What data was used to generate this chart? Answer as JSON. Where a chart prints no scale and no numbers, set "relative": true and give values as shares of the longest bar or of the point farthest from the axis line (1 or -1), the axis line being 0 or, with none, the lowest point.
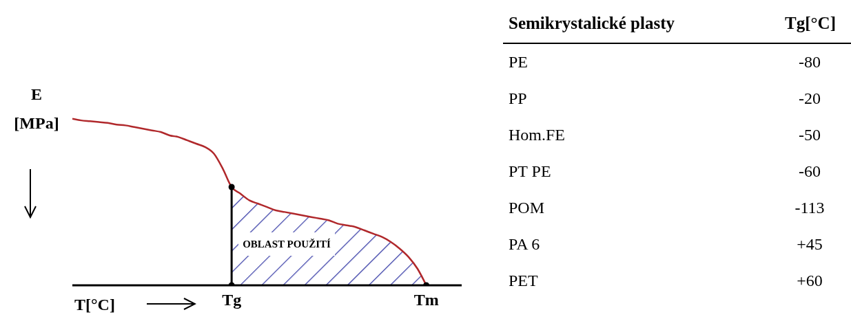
{
  "chart_data": [
    {
      "type": "line",
      "relative": true,
      "ylabel": "E [MPa]",
      "xlabel": "T[°C]",
      "legend": false,
      "grid": false,
      "line_style": "solid",
      "categories": [
        null,
        null,
        null,
        null,
        null,
        null,
        null,
        null,
        null,
        null,
        null,
        null,
        null,
        null,
        null,
        null,
        null,
        null,
        "Tg",
        null,
        null,
        null,
        null,
        null,
        null,
        null,
        null,
        null,
        null,
        null,
        null,
        null,
        null,
        null,
        null,
        null,
        null,
        null,
        null,
        null,
        "Tm"
      ],
      "series": [
        {
          "type": "line",
          "color": "#b0282b",
          "values": [
            1.0,
            0.99,
            0.985,
            0.98,
            0.975,
            0.965,
            0.96,
            0.95,
            0.94,
            0.93,
            0.92,
            0.9,
            0.89,
            0.87,
            0.85,
            0.83,
            0.79,
            0.7,
            0.59,
            0.55,
            0.51,
            0.49,
            0.47,
            0.45,
            0.44,
            0.43,
            0.42,
            0.41,
            0.4,
            0.39,
            0.37,
            0.36,
            0.35,
            0.33,
            0.31,
            0.29,
            0.26,
            0.22,
            0.17,
            0.1,
            0.0
          ]
        },
        {
          "type": "area",
          "color": "#3a3fa8",
          "values": [
            null,
            null,
            null,
            null,
            null,
            null,
            null,
            null,
            null,
            null,
            null,
            null,
            null,
            null,
            null,
            null,
            null,
            null,
            0.59,
            0.55,
            0.51,
            0.49,
            0.47,
            0.45,
            0.44,
            0.43,
            0.42,
            0.41,
            0.4,
            0.39,
            0.37,
            0.36,
            0.35,
            0.33,
            0.31,
            0.29,
            0.26,
            0.22,
            0.17,
            0.1,
            0.0
          ]
        },
        {
          "type": "line",
          "color": "#000000",
          "x": [
            "Tg",
            "Tg"
          ],
          "values": [
            0,
            0.59
          ]
        },
        {
          "type": "scatter",
          "color": "#000000",
          "x": [
            "Tg",
            "Tg",
            "Tm"
          ],
          "values": [
            0.59,
            0,
            0
          ]
        }
      ],
      "annotations": [
        "OBLAST POUŽITÍ"
      ]
    },
    {
      "type": "other",
      "xlabel": "Semikrystalické plasty",
      "ylabel": "Tg[°C]",
      "categories": [
        "PE",
        "PP",
        "Hom.FE",
        "PT PE",
        "POM",
        "PA 6",
        "PET"
      ],
      "values": [
        -80,
        -20,
        -50,
        -60,
        -113,
        45,
        60
      ],
      "value_labels": [
        "-80",
        "-20",
        "-50",
        "-60",
        "-113",
        "+45",
        "+60"
      ]
    }
  ]
}
